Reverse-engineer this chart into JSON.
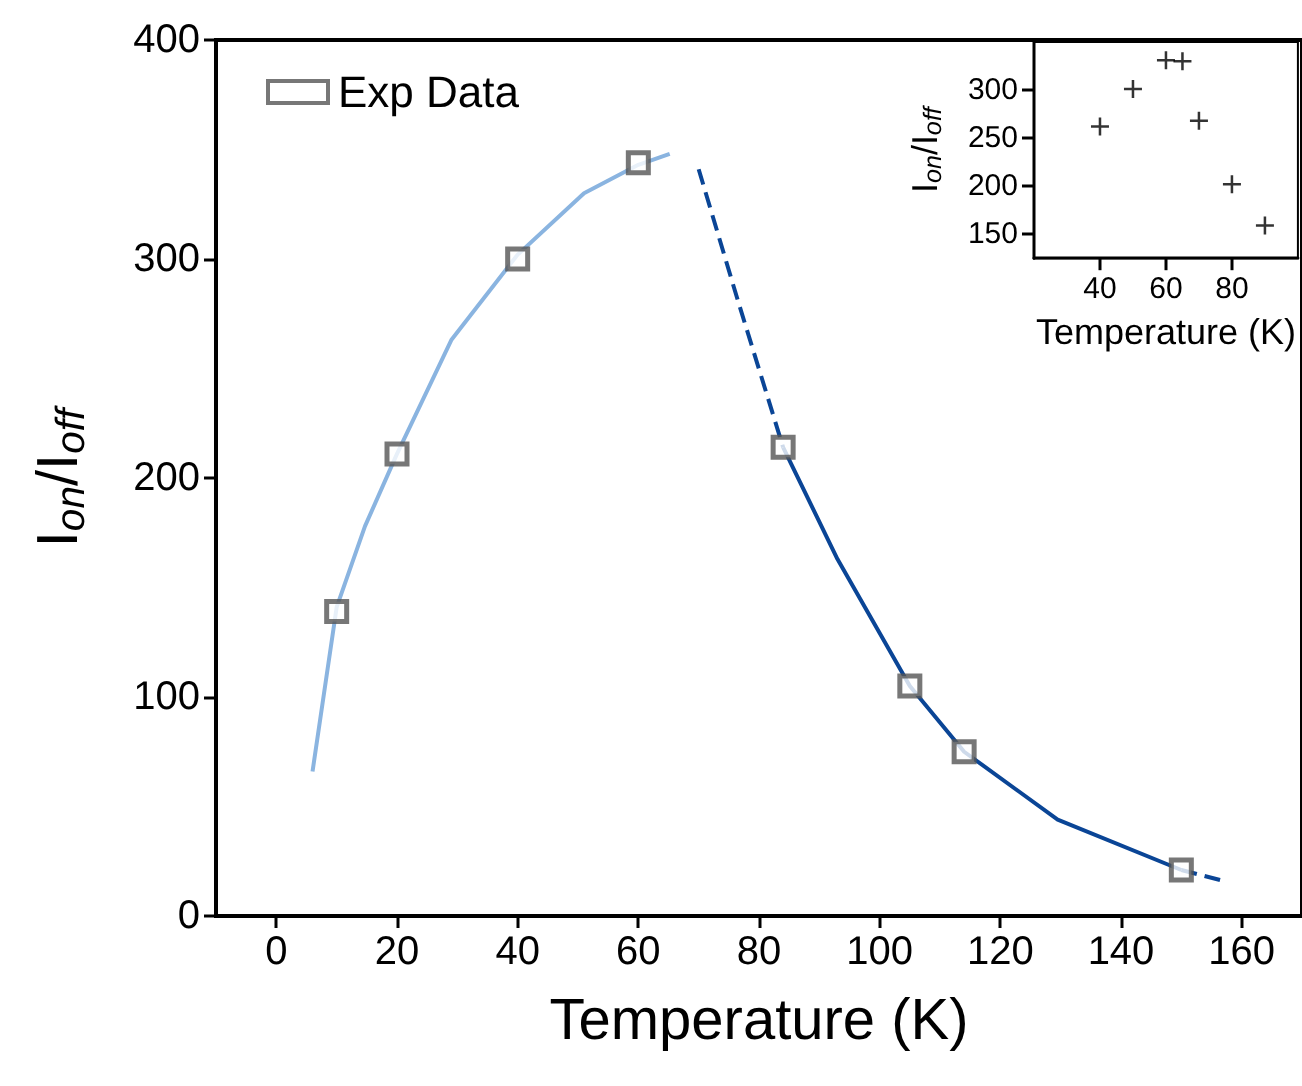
{
  "chart_data": [
    {
      "type": "scatter",
      "xlabel": "Temperature (K)",
      "ylabel": "I$_{on}$/I$_{off}$",
      "xlim": [
        -10,
        170
      ],
      "xticks": [
        0,
        20,
        40,
        60,
        80,
        100,
        120,
        140,
        160
      ],
      "ylim": [
        0,
        400
      ],
      "yticks": [
        0,
        100,
        200,
        300,
        400
      ],
      "grid": false,
      "legend": "top left",
      "series": [
        {
          "name": "Exp Data",
          "marker": "square",
          "color": "#555555",
          "x": [
            10,
            20,
            40,
            60,
            84,
            105,
            114,
            150
          ],
          "values": [
            139,
            211,
            300,
            344,
            214,
            105,
            75,
            21
          ]
        },
        {
          "type": "line",
          "marker": "none",
          "line_style": "solid",
          "color": "#8ab4e0",
          "x": [
            6,
            10,
            14.7,
            20,
            29,
            40,
            51,
            60,
            65.2
          ],
          "values": [
            66,
            141,
            178,
            211,
            263,
            302,
            330,
            343,
            348
          ]
        },
        {
          "type": "line",
          "marker": "none",
          "line_style": "dashed",
          "color": "#0a4596",
          "x": [
            70,
            76.5,
            84
          ],
          "values": [
            341,
            281,
            214
          ]
        },
        {
          "type": "line",
          "marker": "none",
          "line_style": "solid",
          "color": "#0a4596",
          "x": [
            84,
            93,
            105,
            114,
            129.5,
            150
          ],
          "values": [
            214,
            163,
            105,
            75,
            44,
            21
          ]
        },
        {
          "type": "line",
          "marker": "none",
          "line_style": "dashed",
          "color": "#0a4596",
          "x": [
            150,
            157
          ],
          "values": [
            21,
            16
          ]
        }
      ]
    },
    {
      "type": "scatter",
      "xlabel": "Temperature (K)",
      "ylabel": "I$_{on}$/I$_{off}$",
      "xlim": [
        20,
        100
      ],
      "xticks": [
        40,
        60,
        80
      ],
      "ylim": [
        125,
        350
      ],
      "yticks": [
        150,
        200,
        250,
        300
      ],
      "grid": false,
      "legend": false,
      "marker": "cross",
      "series": [
        {
          "color": "#000000",
          "x": [
            40,
            50,
            60,
            65,
            70,
            80,
            90
          ],
          "values": [
            262,
            301,
            331,
            330,
            268,
            202,
            159
          ]
        }
      ]
    }
  ]
}
